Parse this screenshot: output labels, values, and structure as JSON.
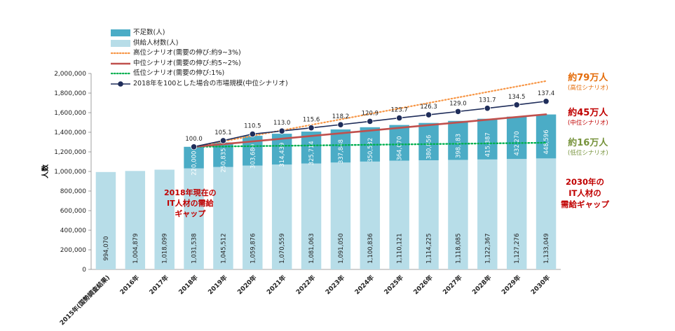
{
  "chart_data": {
    "type": "bar",
    "ylabel": "人数",
    "ylim": [
      0,
      2000000
    ],
    "yticks": [
      "0",
      "200,000",
      "400,000",
      "600,000",
      "800,000",
      "1,000,000",
      "1,200,000",
      "1,400,000",
      "1,600,000",
      "1,800,000",
      "2,000,000"
    ],
    "ytick_values": [
      0,
      200000,
      400000,
      600000,
      800000,
      1000000,
      1200000,
      1400000,
      1600000,
      1800000,
      2000000
    ],
    "categories": [
      "2015年(国勢調査結果)",
      "2016年",
      "2017年",
      "2018年",
      "2019年",
      "2020年",
      "2021年",
      "2022年",
      "2023年",
      "2024年",
      "2025年",
      "2026年",
      "2027年",
      "2028年",
      "2029年",
      "2030年"
    ],
    "supply": [
      994070,
      1004879,
      1018099,
      1031538,
      1045512,
      1059876,
      1070559,
      1081063,
      1091050,
      1100836,
      1110121,
      1114225,
      1118085,
      1122367,
      1127276,
      1133049
    ],
    "supply_labels": [
      "994,070",
      "1,004,879",
      "1,018,099",
      "1,031,538",
      "1,045,512",
      "1,059,876",
      "1,070,559",
      "1,081,063",
      "1,091,050",
      "1,100,836",
      "1,110,121",
      "1,114,225",
      "1,118,085",
      "1,122,367",
      "1,127,276",
      "1,133,049"
    ],
    "shortage": [
      null,
      null,
      null,
      220000,
      250835,
      303680,
      314439,
      325714,
      337848,
      350532,
      364070,
      380856,
      398183,
      415387,
      432270,
      448596
    ],
    "shortage_labels": [
      "",
      "",
      "",
      "220,000",
      "250,835",
      "303,680",
      "314,439",
      "325,714",
      "337,848",
      "350,532",
      "364,070",
      "380,856",
      "398,183",
      "415,387",
      "432,270",
      "448,596"
    ],
    "market_index": [
      null,
      null,
      null,
      100.0,
      105.1,
      110.5,
      113.0,
      115.6,
      118.2,
      120.9,
      123.7,
      126.3,
      129.0,
      131.7,
      134.5,
      137.4
    ],
    "market_index_labels": [
      "",
      "",
      "",
      "100.0",
      "105.1",
      "110.5",
      "113.0",
      "115.6",
      "118.2",
      "120.9",
      "123.7",
      "126.3",
      "129.0",
      "131.7",
      "134.5",
      "137.4"
    ],
    "scenario_high": [
      null,
      null,
      null,
      1251538,
      null,
      null,
      null,
      null,
      null,
      null,
      null,
      null,
      null,
      null,
      null,
      1923049
    ],
    "scenario_mid": [
      null,
      null,
      null,
      1251538,
      null,
      null,
      null,
      null,
      null,
      null,
      null,
      null,
      null,
      null,
      null,
      1583049
    ],
    "scenario_low": [
      null,
      null,
      null,
      1251538,
      null,
      null,
      null,
      null,
      null,
      null,
      null,
      null,
      null,
      null,
      null,
      1293049
    ],
    "legend": [
      {
        "label": "不足数(人)",
        "kind": "bar",
        "color": "#4bacc6"
      },
      {
        "label": "供給人材数(人)",
        "kind": "bar",
        "color": "#b7dde8"
      },
      {
        "label": "高位シナリオ(需要の伸び:約9~3%)",
        "kind": "dotted",
        "color": "#f79646"
      },
      {
        "label": "中位シナリオ(需要の伸び:約5~2%)",
        "kind": "solid",
        "color": "#c0504d"
      },
      {
        "label": "低位シナリオ(需要の伸び:1%)",
        "kind": "dotted",
        "color": "#00b050"
      },
      {
        "label": "2018年を100とした場合の市場規模(中位シナリオ)",
        "kind": "marker",
        "color": "#1f2d5a"
      }
    ],
    "colors": {
      "supply": "#b7dde8",
      "shortage": "#4bacc6",
      "high": "#f79646",
      "mid": "#c0504d",
      "low": "#00b050",
      "market": "#1f2d5a"
    },
    "annotations": {
      "high": {
        "big": "約79万人",
        "small": "(高位シナリオ)",
        "color": "#e46c0a"
      },
      "mid": {
        "big": "約45万人",
        "small": "(中位シナリオ)",
        "color": "#c00000"
      },
      "low": {
        "big": "約16万人",
        "small": "(低位シナリオ)",
        "color": "#77933c"
      },
      "gap2030": {
        "lines": [
          "2030年の",
          "IT人材の",
          "需給ギャップ"
        ],
        "color": "#c00000"
      },
      "gap2018": {
        "lines": [
          "2018年現在の",
          "IT人材の需給",
          "ギャップ"
        ],
        "color": "#c00000"
      }
    }
  }
}
